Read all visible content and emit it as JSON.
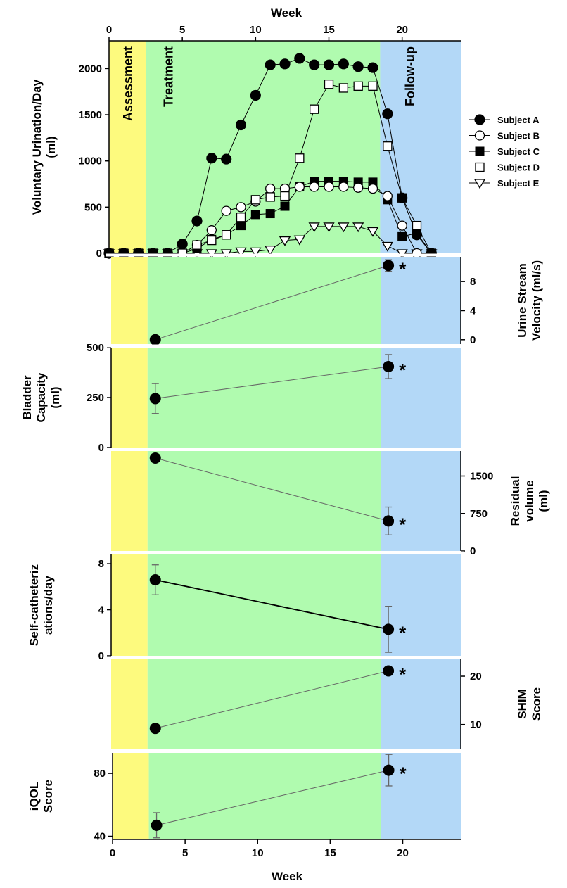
{
  "figure": {
    "top_axis_title": "Week",
    "bottom_axis_title": "Week",
    "phases": [
      {
        "label": "Assessment",
        "start": 0,
        "end": 2.5,
        "color": "#fdfa7e"
      },
      {
        "label": "Treatment",
        "start": 2.5,
        "end": 18.5,
        "color": "#b0fbaf"
      },
      {
        "label": "Follow-up",
        "start": 18.5,
        "end": 24,
        "color": "#b3d8f7"
      }
    ],
    "significance_marker": "*"
  },
  "chart_data": [
    {
      "type": "line",
      "panel": "voluntary-urination",
      "ylabel": [
        "Voluntary Urination/Day",
        "(ml)"
      ],
      "xlabel": "Week",
      "xlim": [
        0,
        24
      ],
      "ylim": [
        0,
        2300
      ],
      "xticks": [
        0,
        5,
        10,
        15,
        20
      ],
      "yticks": [
        0,
        500,
        1000,
        1500,
        2000
      ],
      "legend_position": "right",
      "series": [
        {
          "name": "Subject A",
          "marker": "circle-filled",
          "x": [
            0,
            1,
            2,
            3,
            4,
            5,
            6,
            7,
            8,
            9,
            10,
            11,
            12,
            13,
            14,
            15,
            16,
            17,
            18,
            19,
            20,
            21,
            22
          ],
          "y": [
            0,
            0,
            0,
            0,
            0,
            100,
            350,
            1030,
            1020,
            1390,
            1710,
            2040,
            2050,
            2110,
            2040,
            2040,
            2050,
            2020,
            2010,
            1510,
            600,
            200,
            0
          ]
        },
        {
          "name": "Subject B",
          "marker": "circle-open",
          "x": [
            0,
            1,
            2,
            3,
            4,
            5,
            6,
            7,
            8,
            9,
            10,
            11,
            12,
            13,
            14,
            15,
            16,
            17,
            18,
            19,
            20,
            21,
            22
          ],
          "y": [
            0,
            0,
            0,
            0,
            0,
            0,
            90,
            250,
            460,
            500,
            560,
            700,
            700,
            720,
            720,
            720,
            720,
            710,
            700,
            620,
            300,
            0,
            0
          ]
        },
        {
          "name": "Subject C",
          "marker": "square-filled",
          "x": [
            0,
            1,
            2,
            3,
            4,
            5,
            6,
            7,
            8,
            9,
            10,
            11,
            12,
            13,
            14,
            15,
            16,
            17,
            18,
            19,
            20,
            21,
            22
          ],
          "y": [
            0,
            0,
            0,
            0,
            0,
            0,
            50,
            150,
            200,
            300,
            420,
            430,
            510,
            720,
            780,
            780,
            780,
            770,
            770,
            580,
            180,
            220,
            0
          ]
        },
        {
          "name": "Subject D",
          "marker": "square-open",
          "x": [
            0,
            1,
            2,
            3,
            4,
            5,
            6,
            7,
            8,
            9,
            10,
            11,
            12,
            13,
            14,
            15,
            16,
            17,
            18,
            19,
            20,
            21,
            22
          ],
          "y": [
            0,
            0,
            0,
            0,
            0,
            0,
            90,
            140,
            200,
            390,
            580,
            610,
            620,
            1030,
            1560,
            1830,
            1790,
            1810,
            1810,
            1160,
            600,
            300,
            0
          ]
        },
        {
          "name": "Subject E",
          "marker": "triangle-down-open",
          "x": [
            0,
            1,
            2,
            3,
            4,
            5,
            6,
            7,
            8,
            9,
            10,
            11,
            12,
            13,
            14,
            15,
            16,
            17,
            18,
            19,
            20,
            21,
            22
          ],
          "y": [
            0,
            0,
            0,
            0,
            0,
            0,
            0,
            0,
            0,
            20,
            20,
            40,
            140,
            150,
            290,
            290,
            290,
            290,
            240,
            80,
            0,
            0,
            0
          ]
        }
      ]
    },
    {
      "type": "scatter",
      "panel": "urine-stream-velocity",
      "ylabel": [
        "Urine Stream",
        "Velocity (ml/s)"
      ],
      "yaxis_side": "right",
      "ylim": [
        -0.6,
        11.4
      ],
      "yticks": [
        0,
        4,
        8
      ],
      "xlim": [
        0,
        24
      ],
      "x": [
        2.5,
        18.5
      ],
      "y": [
        0,
        10.2
      ],
      "err": [
        0,
        0.8
      ],
      "significant": [
        false,
        true
      ]
    },
    {
      "type": "scatter",
      "panel": "bladder-capacity",
      "ylabel": [
        "Bladder",
        "Capacity",
        "(ml)"
      ],
      "yaxis_side": "left",
      "ylim": [
        0,
        500
      ],
      "yticks": [
        0,
        250,
        500
      ],
      "xlim": [
        0,
        24
      ],
      "x": [
        2.5,
        18.5
      ],
      "y": [
        245,
        405
      ],
      "err": [
        75,
        60
      ],
      "significant": [
        false,
        true
      ]
    },
    {
      "type": "scatter",
      "panel": "residual-volume",
      "ylabel": [
        "Residual",
        "volume",
        "(ml)"
      ],
      "yaxis_side": "right",
      "ylim": [
        0,
        2000
      ],
      "yticks": [
        0,
        750,
        1500
      ],
      "xlim": [
        0,
        24
      ],
      "x": [
        2.5,
        18.5
      ],
      "y": [
        1860,
        600
      ],
      "err": [
        0,
        280
      ],
      "significant": [
        false,
        true
      ]
    },
    {
      "type": "scatter",
      "panel": "self-catheterizations",
      "ylabel": [
        "Self-catheteriz",
        "ations/day"
      ],
      "yaxis_side": "left",
      "ylim": [
        0,
        8.8
      ],
      "yticks": [
        0,
        4,
        8
      ],
      "xlim": [
        0,
        24
      ],
      "x": [
        2.5,
        18.5
      ],
      "y": [
        6.6,
        2.3
      ],
      "err": [
        1.3,
        2.0
      ],
      "significant": [
        false,
        true
      ]
    },
    {
      "type": "scatter",
      "panel": "shim-score",
      "ylabel": [
        "SHIM",
        "Score"
      ],
      "yaxis_side": "right",
      "ylim": [
        5,
        23.5
      ],
      "yticks": [
        10,
        20
      ],
      "xlim": [
        0,
        24
      ],
      "x": [
        2.5,
        18.5
      ],
      "y": [
        9.2,
        21.1
      ],
      "err": [
        0,
        0
      ],
      "significant": [
        false,
        true
      ]
    },
    {
      "type": "scatter",
      "panel": "iqol-score",
      "ylabel": [
        "iQOL",
        "Score"
      ],
      "yaxis_side": "left",
      "ylim": [
        38,
        93
      ],
      "yticks": [
        40,
        80
      ],
      "xlim": [
        0,
        24
      ],
      "xticks": [
        0,
        5,
        10,
        15,
        20
      ],
      "xlabel": "Week",
      "x": [
        2.5,
        18.5
      ],
      "y": [
        47,
        82
      ],
      "err": [
        8,
        10
      ],
      "significant": [
        false,
        true
      ]
    }
  ]
}
